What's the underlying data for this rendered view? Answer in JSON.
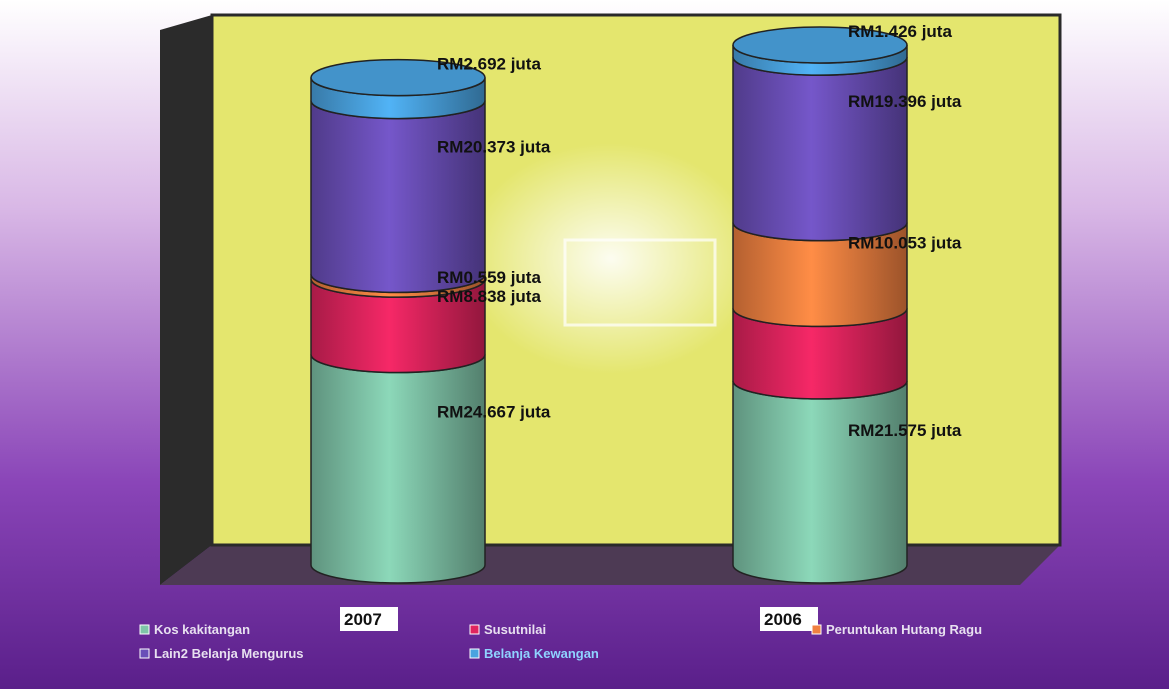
{
  "chart_data": {
    "type": "bar",
    "stacked": true,
    "style": "3d-cylinder",
    "categories": [
      "2007",
      "2006"
    ],
    "series": [
      {
        "name": "Kos kakitangan",
        "color": "#7fc4a8",
        "values": [
          24.667,
          21.575
        ],
        "labels": [
          "RM24.667 juta",
          "RM21.575 juta"
        ]
      },
      {
        "name": "Susutnilai",
        "color": "#e0245e",
        "values": [
          8.838,
          8.5
        ],
        "labels": [
          "RM8.838 juta",
          ""
        ]
      },
      {
        "name": "Peruntukan Hutang Ragu",
        "color": "#f08040",
        "values": [
          0.559,
          10.053
        ],
        "labels": [
          "RM0.559 juta",
          "RM10.053 juta"
        ]
      },
      {
        "name": "Lain2 Belanja Mengurus",
        "color": "#6a4fb8",
        "values": [
          20.373,
          19.396
        ],
        "labels": [
          "RM20.373 juta",
          "RM19.396 juta"
        ]
      },
      {
        "name": "Belanja Kewangan",
        "color": "#4aa3e0",
        "values": [
          2.692,
          1.426
        ],
        "labels": [
          "RM2.692 juta",
          "RM1.426 juta"
        ]
      }
    ],
    "legend_position": "bottom",
    "grid": false,
    "background_color": "#e4e66e",
    "page_gradient": [
      "#ffffff",
      "#d9b8e6",
      "#8a45b8",
      "#5a1f8a"
    ]
  }
}
